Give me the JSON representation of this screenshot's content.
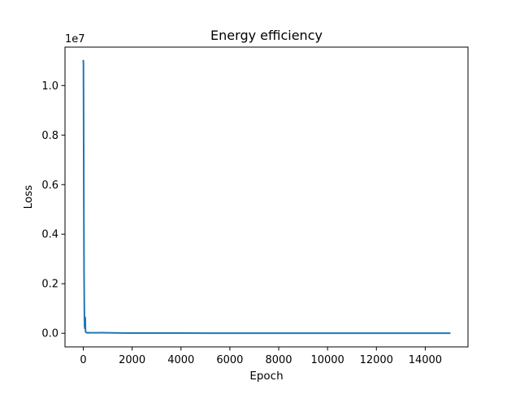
{
  "chart_data": {
    "type": "line",
    "title": "Energy efficiency",
    "xlabel": "Epoch",
    "ylabel": "Loss",
    "y_offset_label": "1e7",
    "xlim": [
      -750,
      15750
    ],
    "ylim": [
      -0.055,
      1.155
    ],
    "y_scale_factor": 10000000,
    "xticks": [
      0,
      2000,
      4000,
      6000,
      8000,
      10000,
      12000,
      14000
    ],
    "xtick_labels": [
      "0",
      "2000",
      "4000",
      "6000",
      "8000",
      "10000",
      "12000",
      "14000"
    ],
    "yticks": [
      0.0,
      0.2,
      0.4,
      0.6,
      0.8,
      1.0
    ],
    "ytick_labels": [
      "0.0",
      "0.2",
      "0.4",
      "0.6",
      "0.8",
      "1.0"
    ],
    "grid": false,
    "series": [
      {
        "color": "#1f77b4",
        "x": [
          0,
          5,
          10,
          20,
          30,
          40,
          50,
          60,
          70,
          80,
          90,
          100,
          110,
          120,
          150,
          200,
          300,
          500,
          800,
          1000,
          1200,
          1500,
          2000,
          3000,
          4000,
          5000,
          6000,
          8000,
          10000,
          12000,
          14000,
          15000
        ],
        "y": [
          1.1,
          1.09,
          0.95,
          0.55,
          0.25,
          0.12,
          0.03,
          0.02,
          0.065,
          0.06,
          0.01,
          0.005,
          0.003,
          0.003,
          0.002,
          0.0025,
          0.002,
          0.002,
          0.0022,
          0.002,
          0.0017,
          0.0012,
          0.0009,
          0.0007,
          0.0006,
          0.0005,
          0.0004,
          0.0003,
          0.00025,
          0.0002,
          0.0002,
          0.0002
        ]
      }
    ]
  }
}
